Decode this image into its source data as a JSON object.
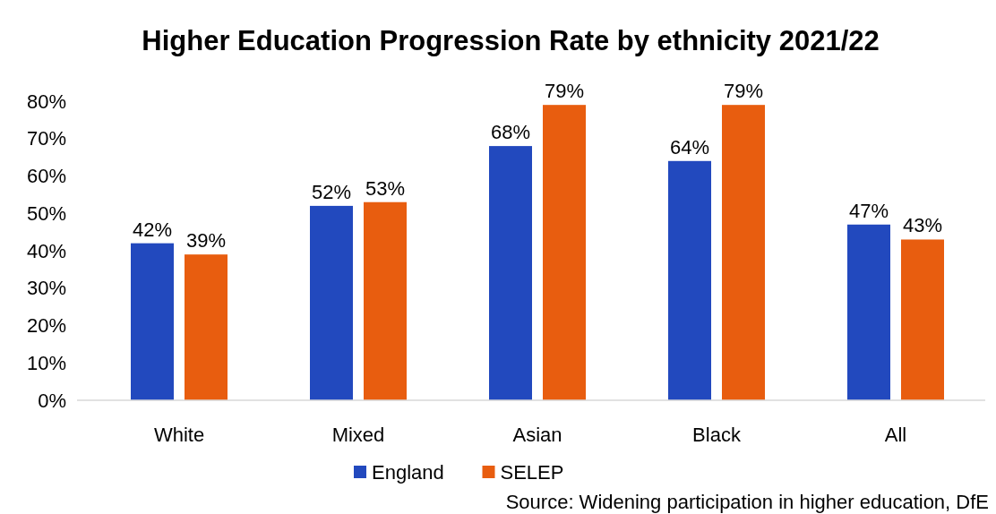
{
  "chart_data": {
    "type": "bar",
    "title": "Higher Education Progression Rate by ethnicity 2021/22",
    "categories": [
      "White",
      "Mixed",
      "Asian",
      "Black",
      "All"
    ],
    "series": [
      {
        "name": "England",
        "color": "#2249be",
        "values": [
          42,
          52,
          68,
          64,
          47
        ],
        "value_labels": [
          "42%",
          "52%",
          "68%",
          "64%",
          "47%"
        ]
      },
      {
        "name": "SELEP",
        "color": "#e85d0f",
        "values": [
          39,
          53,
          79,
          79,
          43
        ],
        "value_labels": [
          "39%",
          "53%",
          "79%",
          "79%",
          "43%"
        ]
      }
    ],
    "ylim": [
      0,
      80
    ],
    "yticks": [
      {
        "value": 0,
        "label": "0%"
      },
      {
        "value": 10,
        "label": "10%"
      },
      {
        "value": 20,
        "label": "20%"
      },
      {
        "value": 30,
        "label": "30%"
      },
      {
        "value": 40,
        "label": "40%"
      },
      {
        "value": 50,
        "label": "50%"
      },
      {
        "value": 60,
        "label": "60%"
      },
      {
        "value": 70,
        "label": "70%"
      },
      {
        "value": 80,
        "label": "80%"
      }
    ],
    "grid": false,
    "legend": "bottom",
    "annotations": [
      "Source: Widening participation in higher education, DfE"
    ]
  }
}
